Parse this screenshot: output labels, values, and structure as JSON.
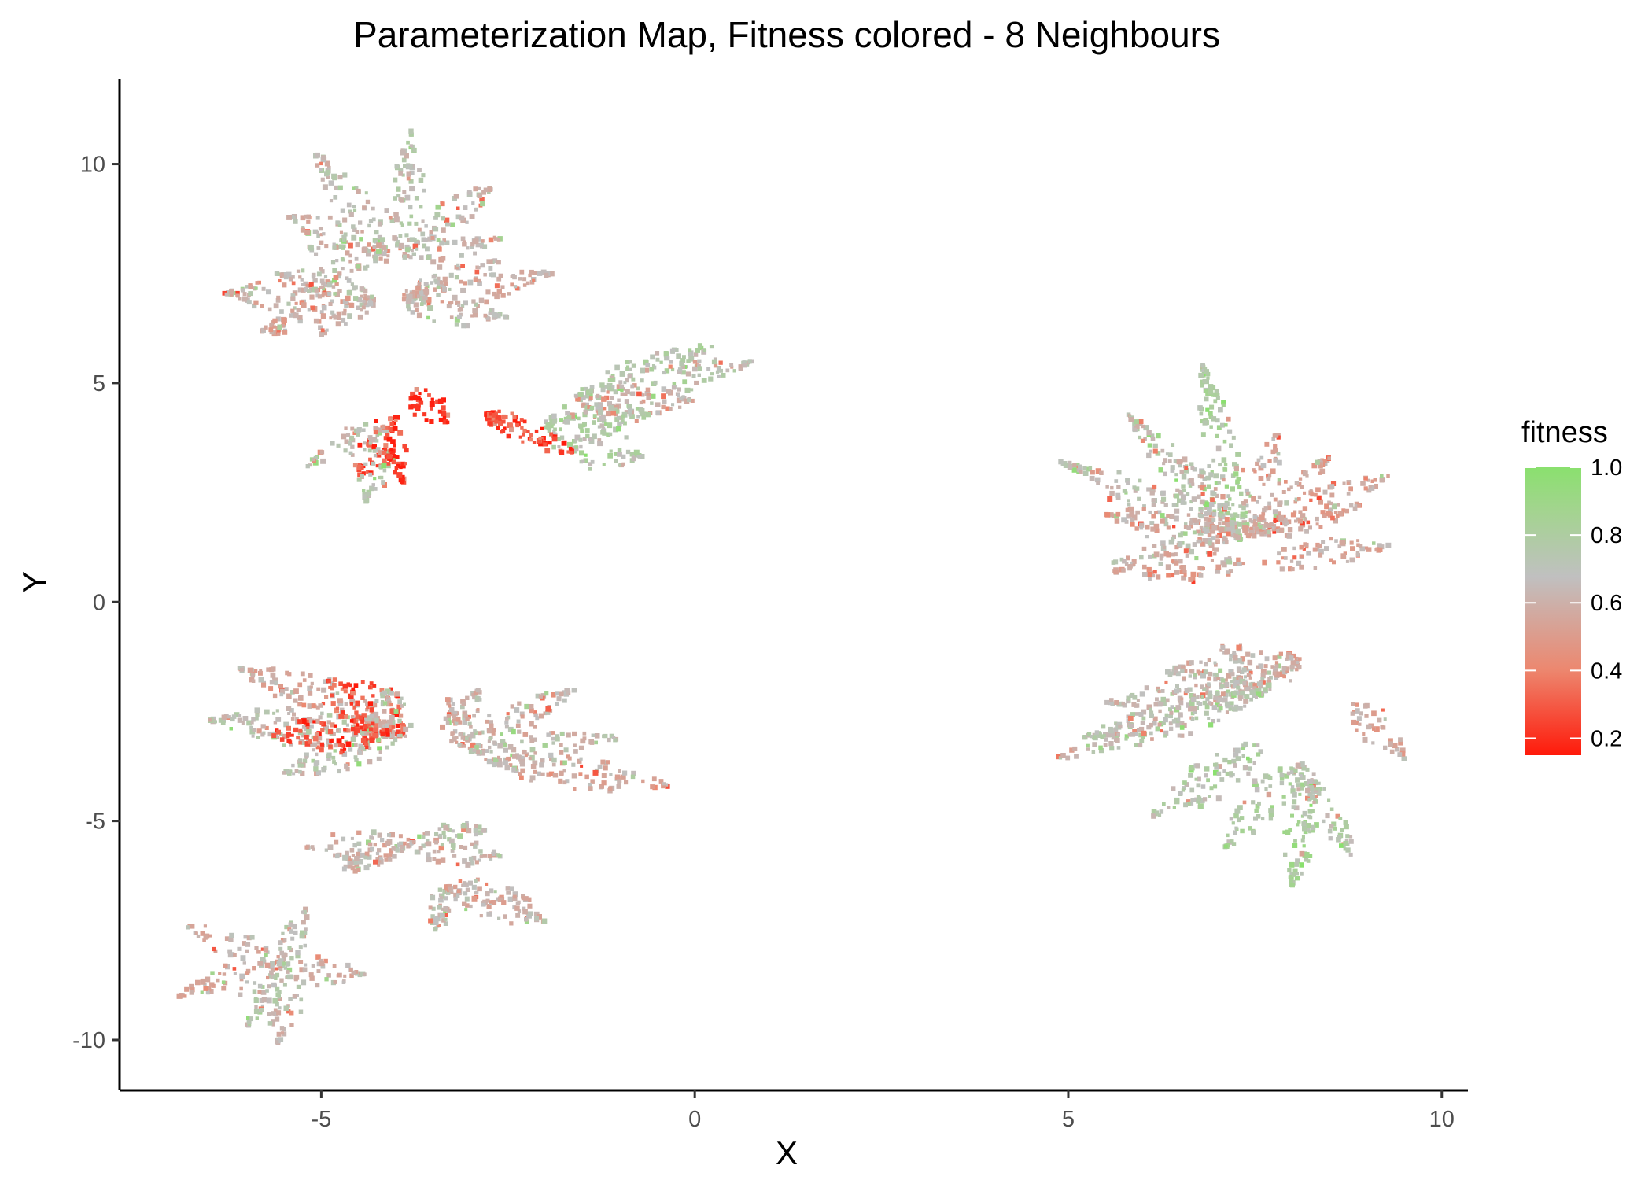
{
  "chart_data": {
    "type": "scatter",
    "title": "Parameterization Map, Fitness colored - 8 Neighbours",
    "xlabel": "X",
    "ylabel": "Y",
    "xlim": [
      -7.7,
      10.35
    ],
    "ylim": [
      -11.15,
      11.95
    ],
    "x_ticks": [
      -5,
      0,
      5,
      10
    ],
    "y_ticks": [
      -10,
      -5,
      0,
      5,
      10
    ],
    "x_tick_labels": [
      "-5",
      "0",
      "5",
      "10"
    ],
    "y_tick_labels": [
      "-10",
      "-5",
      "0",
      "5",
      "10"
    ],
    "grid": false,
    "legend": {
      "title": "fitness",
      "position": "right",
      "type": "colorbar",
      "range": [
        0.15,
        1.0
      ],
      "ticks": [
        0.2,
        0.4,
        0.6,
        0.8,
        1.0
      ],
      "tick_labels": [
        "0.2",
        "0.4",
        "0.6",
        "0.8",
        "1.0"
      ],
      "colors": {
        "low": "#ff1a0a",
        "mid_low": "#ec8870",
        "mid": "#c0c0c0",
        "mid_high": "#a3d48f",
        "high": "#8ae06e"
      }
    },
    "clusters": [
      {
        "name": "upper-left",
        "leaves": [
          {
            "base": [
              -3.95,
              8.05
            ],
            "tip": [
              -3.8,
              10.8
            ],
            "width": 0.55,
            "fitness": 0.7
          },
          {
            "base": [
              -4.1,
              8.0
            ],
            "tip": [
              -5.1,
              10.3
            ],
            "width": 0.5,
            "fitness": 0.68
          },
          {
            "base": [
              -3.85,
              8.05
            ],
            "tip": [
              -2.7,
              9.5
            ],
            "width": 0.55,
            "fitness": 0.66
          },
          {
            "base": [
              -4.1,
              7.9
            ],
            "tip": [
              -5.45,
              8.8
            ],
            "width": 0.5,
            "fitness": 0.64
          },
          {
            "base": [
              -3.9,
              7.9
            ],
            "tip": [
              -2.6,
              8.3
            ],
            "width": 0.45,
            "fitness": 0.62
          },
          {
            "base": [
              -4.1,
              7.8
            ],
            "tip": [
              -5.2,
              8.1
            ],
            "width": 0.45,
            "fitness": 0.66
          },
          {
            "base": [
              -4.3,
              6.9
            ],
            "tip": [
              -6.3,
              7.05
            ],
            "width": 0.6,
            "fitness": 0.6
          },
          {
            "base": [
              -4.3,
              6.8
            ],
            "tip": [
              -5.8,
              6.2
            ],
            "width": 0.6,
            "fitness": 0.58
          },
          {
            "base": [
              -4.3,
              7.0
            ],
            "tip": [
              -5.6,
              7.5
            ],
            "width": 0.45,
            "fitness": 0.68
          },
          {
            "base": [
              -3.9,
              6.9
            ],
            "tip": [
              -1.9,
              7.5
            ],
            "width": 0.5,
            "fitness": 0.6
          },
          {
            "base": [
              -3.9,
              6.8
            ],
            "tip": [
              -2.5,
              6.5
            ],
            "width": 0.45,
            "fitness": 0.66
          },
          {
            "base": [
              -3.9,
              7.0
            ],
            "tip": [
              -2.6,
              7.8
            ],
            "width": 0.4,
            "fitness": 0.64
          },
          {
            "base": [
              -1.6,
              4.6
            ],
            "tip": [
              0.8,
              5.5
            ],
            "width": 0.55,
            "fitness": 0.7
          },
          {
            "base": [
              -1.5,
              4.5
            ],
            "tip": [
              0.0,
              4.6
            ],
            "width": 0.5,
            "fitness": 0.62
          },
          {
            "base": [
              -1.6,
              4.7
            ],
            "tip": [
              0.3,
              5.9
            ],
            "width": 0.4,
            "fitness": 0.72
          },
          {
            "base": [
              -2.0,
              4.0
            ],
            "tip": [
              -0.7,
              3.3
            ],
            "width": 0.8,
            "fitness": 0.76
          },
          {
            "base": [
              -2.0,
              4.1
            ],
            "tip": [
              -0.6,
              4.3
            ],
            "width": 0.6,
            "fitness": 0.74
          },
          {
            "base": [
              -2.8,
              4.3
            ],
            "tip": [
              -1.6,
              3.4
            ],
            "width": 0.4,
            "fitness": 0.22
          },
          {
            "base": [
              -2.8,
              4.3
            ],
            "tip": [
              -2.0,
              3.6
            ],
            "width": 0.35,
            "fitness": 0.3
          },
          {
            "base": [
              -3.8,
              4.8
            ],
            "tip": [
              -3.3,
              4.1
            ],
            "width": 0.5,
            "fitness": 0.2
          },
          {
            "base": [
              -4.0,
              4.3
            ],
            "tip": [
              -4.5,
              2.8
            ],
            "width": 0.55,
            "fitness": 0.25
          },
          {
            "base": [
              -4.1,
              4.0
            ],
            "tip": [
              -5.2,
              3.1
            ],
            "width": 0.5,
            "fitness": 0.68
          },
          {
            "base": [
              -4.2,
              3.7
            ],
            "tip": [
              -4.4,
              2.3
            ],
            "width": 0.55,
            "fitness": 0.74
          },
          {
            "base": [
              -4.1,
              3.9
            ],
            "tip": [
              -3.9,
              2.7
            ],
            "width": 0.35,
            "fitness": 0.2
          }
        ]
      },
      {
        "name": "lower-left",
        "leaves": [
          {
            "base": [
              -4.0,
              -3.0
            ],
            "tip": [
              -6.1,
              -1.5
            ],
            "width": 0.7,
            "fitness": 0.6
          },
          {
            "base": [
              -4.0,
              -3.0
            ],
            "tip": [
              -6.5,
              -2.7
            ],
            "width": 0.6,
            "fitness": 0.68
          },
          {
            "base": [
              -3.9,
              -3.0
            ],
            "tip": [
              -4.9,
              -1.8
            ],
            "width": 0.9,
            "fitness": 0.3
          },
          {
            "base": [
              -3.9,
              -3.1
            ],
            "tip": [
              -4.2,
              -2.0
            ],
            "width": 0.7,
            "fitness": 0.68
          },
          {
            "base": [
              -4.0,
              -3.1
            ],
            "tip": [
              -5.5,
              -3.9
            ],
            "width": 0.55,
            "fitness": 0.68
          },
          {
            "base": [
              -4.1,
              -3.0
            ],
            "tip": [
              -5.7,
              -3.0
            ],
            "width": 0.6,
            "fitness": 0.25
          },
          {
            "base": [
              -3.1,
              -3.3
            ],
            "tip": [
              -2.9,
              -2.0
            ],
            "width": 0.6,
            "fitness": 0.64
          },
          {
            "base": [
              -3.1,
              -3.3
            ],
            "tip": [
              -1.6,
              -2.0
            ],
            "width": 0.5,
            "fitness": 0.62
          },
          {
            "base": [
              -3.0,
              -3.4
            ],
            "tip": [
              -1.0,
              -3.1
            ],
            "width": 0.5,
            "fitness": 0.66
          },
          {
            "base": [
              -2.8,
              -3.6
            ],
            "tip": [
              -0.3,
              -4.2
            ],
            "width": 0.5,
            "fitness": 0.6
          },
          {
            "base": [
              -3.1,
              -3.3
            ],
            "tip": [
              -3.3,
              -2.2
            ],
            "width": 0.4,
            "fitness": 0.6
          },
          {
            "base": [
              -3.8,
              -5.5
            ],
            "tip": [
              -5.2,
              -5.6
            ],
            "width": 0.5,
            "fitness": 0.6
          },
          {
            "base": [
              -3.8,
              -5.5
            ],
            "tip": [
              -2.6,
              -5.8
            ],
            "width": 0.5,
            "fitness": 0.64
          },
          {
            "base": [
              -3.7,
              -5.4
            ],
            "tip": [
              -2.8,
              -5.2
            ],
            "width": 0.4,
            "fitness": 0.7
          },
          {
            "base": [
              -3.9,
              -5.6
            ],
            "tip": [
              -4.7,
              -6.1
            ],
            "width": 0.45,
            "fitness": 0.62
          },
          {
            "base": [
              -3.3,
              -6.5
            ],
            "tip": [
              -2.0,
              -7.3
            ],
            "width": 0.5,
            "fitness": 0.62
          },
          {
            "base": [
              -3.3,
              -6.5
            ],
            "tip": [
              -3.5,
              -7.5
            ],
            "width": 0.45,
            "fitness": 0.66
          },
          {
            "base": [
              -3.3,
              -6.5
            ],
            "tip": [
              -2.2,
              -6.8
            ],
            "width": 0.4,
            "fitness": 0.58
          },
          {
            "base": [
              -5.5,
              -8.3
            ],
            "tip": [
              -6.8,
              -7.4
            ],
            "width": 0.45,
            "fitness": 0.62
          },
          {
            "base": [
              -5.5,
              -8.3
            ],
            "tip": [
              -6.9,
              -9.0
            ],
            "width": 0.5,
            "fitness": 0.6
          },
          {
            "base": [
              -5.5,
              -8.3
            ],
            "tip": [
              -5.2,
              -7.0
            ],
            "width": 0.4,
            "fitness": 0.68
          },
          {
            "base": [
              -5.5,
              -8.4
            ],
            "tip": [
              -4.4,
              -8.5
            ],
            "width": 0.45,
            "fitness": 0.62
          },
          {
            "base": [
              -5.4,
              -8.5
            ],
            "tip": [
              -5.6,
              -10.1
            ],
            "width": 0.5,
            "fitness": 0.66
          },
          {
            "base": [
              -5.5,
              -8.5
            ],
            "tip": [
              -6.0,
              -9.7
            ],
            "width": 0.4,
            "fitness": 0.7
          }
        ]
      },
      {
        "name": "upper-right",
        "leaves": [
          {
            "base": [
              7.3,
              1.4
            ],
            "tip": [
              6.8,
              5.4
            ],
            "width": 0.7,
            "fitness": 0.8
          },
          {
            "base": [
              7.3,
              1.4
            ],
            "tip": [
              5.8,
              4.3
            ],
            "width": 0.55,
            "fitness": 0.7
          },
          {
            "base": [
              7.4,
              1.5
            ],
            "tip": [
              7.8,
              3.9
            ],
            "width": 0.5,
            "fitness": 0.58
          },
          {
            "base": [
              7.4,
              1.5
            ],
            "tip": [
              8.5,
              3.3
            ],
            "width": 0.5,
            "fitness": 0.56
          },
          {
            "base": [
              7.5,
              1.5
            ],
            "tip": [
              9.3,
              2.9
            ],
            "width": 0.55,
            "fitness": 0.56
          },
          {
            "base": [
              7.2,
              1.5
            ],
            "tip": [
              4.9,
              3.2
            ],
            "width": 0.55,
            "fitness": 0.68
          },
          {
            "base": [
              7.2,
              1.5
            ],
            "tip": [
              5.5,
              2.0
            ],
            "width": 0.55,
            "fitness": 0.58
          },
          {
            "base": [
              7.2,
              1.4
            ],
            "tip": [
              5.6,
              0.9
            ],
            "width": 0.35,
            "fitness": 0.64
          },
          {
            "base": [
              7.4,
              0.9
            ],
            "tip": [
              5.6,
              0.7
            ],
            "width": 0.45,
            "fitness": 0.56
          },
          {
            "base": [
              7.6,
              0.9
            ],
            "tip": [
              9.3,
              1.3
            ],
            "width": 0.45,
            "fitness": 0.56
          },
          {
            "base": [
              7.5,
              1.6
            ],
            "tip": [
              8.9,
              2.2
            ],
            "width": 0.4,
            "fitness": 0.56
          },
          {
            "base": [
              7.2,
              1.7
            ],
            "tip": [
              6.3,
              3.5
            ],
            "width": 0.4,
            "fitness": 0.66
          }
        ]
      },
      {
        "name": "lower-right",
        "leaves": [
          {
            "base": [
              7.8,
              -1.7
            ],
            "tip": [
              6.3,
              -1.6
            ],
            "width": 0.55,
            "fitness": 0.62
          },
          {
            "base": [
              7.8,
              -1.6
            ],
            "tip": [
              8.1,
              -1.3
            ],
            "width": 0.5,
            "fitness": 0.56
          },
          {
            "base": [
              7.8,
              -1.7
            ],
            "tip": [
              7.0,
              -1.0
            ],
            "width": 0.4,
            "fitness": 0.6
          },
          {
            "base": [
              7.7,
              -1.8
            ],
            "tip": [
              5.5,
              -2.3
            ],
            "width": 0.5,
            "fitness": 0.66
          },
          {
            "base": [
              7.7,
              -1.9
            ],
            "tip": [
              5.2,
              -3.1
            ],
            "width": 0.55,
            "fitness": 0.7
          },
          {
            "base": [
              7.7,
              -2.0
            ],
            "tip": [
              4.8,
              -3.6
            ],
            "width": 0.5,
            "fitness": 0.7
          },
          {
            "base": [
              7.6,
              -3.3
            ],
            "tip": [
              6.1,
              -4.9
            ],
            "width": 0.6,
            "fitness": 0.74
          },
          {
            "base": [
              8.0,
              -3.8
            ],
            "tip": [
              7.1,
              -5.6
            ],
            "width": 0.6,
            "fitness": 0.76
          },
          {
            "base": [
              8.2,
              -4.1
            ],
            "tip": [
              8.0,
              -6.5
            ],
            "width": 0.55,
            "fitness": 0.82
          },
          {
            "base": [
              8.3,
              -4.1
            ],
            "tip": [
              8.8,
              -5.8
            ],
            "width": 0.45,
            "fitness": 0.74
          },
          {
            "base": [
              8.8,
              -2.3
            ],
            "tip": [
              9.5,
              -3.6
            ],
            "width": 0.5,
            "fitness": 0.56
          },
          {
            "base": [
              8.1,
              -3.7
            ],
            "tip": [
              8.3,
              -4.6
            ],
            "width": 0.35,
            "fitness": 0.7
          }
        ]
      }
    ]
  }
}
